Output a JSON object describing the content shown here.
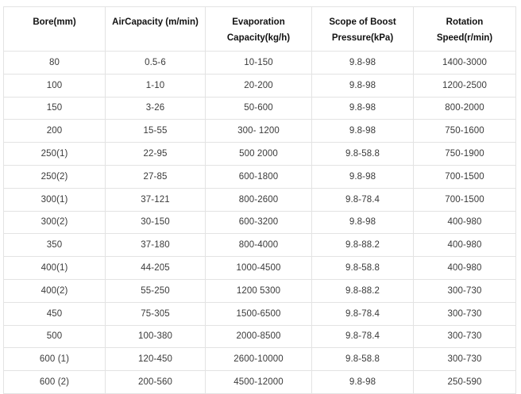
{
  "chart_data": {
    "type": "table",
    "title": "",
    "columns": [
      "Bore(mm)",
      "AirCapacity (m/min)",
      "Evaporation Capacity(kg/h)",
      "Scope of Boost Pressure(kPa)",
      "Rotation Speed(r/min)"
    ],
    "rows": [
      [
        "80",
        "0.5-6",
        "10-150",
        "9.8-98",
        "1400-3000"
      ],
      [
        "100",
        "1-10",
        "20-200",
        "9.8-98",
        "1200-2500"
      ],
      [
        "150",
        "3-26",
        "50-600",
        "9.8-98",
        "800-2000"
      ],
      [
        "200",
        "15-55",
        "300- 1200",
        "9.8-98",
        "750-1600"
      ],
      [
        "250(1)",
        "22-95",
        "500 2000",
        "9.8-58.8",
        "750-1900"
      ],
      [
        "250(2)",
        "27-85",
        "600-1800",
        "9.8-98",
        "700-1500"
      ],
      [
        "300(1)",
        "37-121",
        "800-2600",
        "9.8-78.4",
        "700-1500"
      ],
      [
        "300(2)",
        "30-150",
        "600-3200",
        "9.8-98",
        "400-980"
      ],
      [
        "350",
        "37-180",
        "800-4000",
        "9.8-88.2",
        "400-980"
      ],
      [
        "400(1)",
        "44-205",
        "1000-4500",
        "9.8-58.8",
        "400-980"
      ],
      [
        "400(2)",
        "55-250",
        "1200 5300",
        "9.8-88.2",
        "300-730"
      ],
      [
        "450",
        "75-305",
        "1500-6500",
        "9.8-78.4",
        "300-730"
      ],
      [
        "500",
        "100-380",
        "2000-8500",
        "9.8-78.4",
        "300-730"
      ],
      [
        "600 (1)",
        "120-450",
        "2600-10000",
        "9.8-58.8",
        "300-730"
      ],
      [
        "600 (2)",
        "200-560",
        "4500-12000",
        "9.8-98",
        "250-590"
      ]
    ]
  },
  "colors": {
    "border": "#e3e3e3",
    "header_text": "#121212",
    "body_text": "#3a3a3a",
    "background": "#ffffff"
  }
}
